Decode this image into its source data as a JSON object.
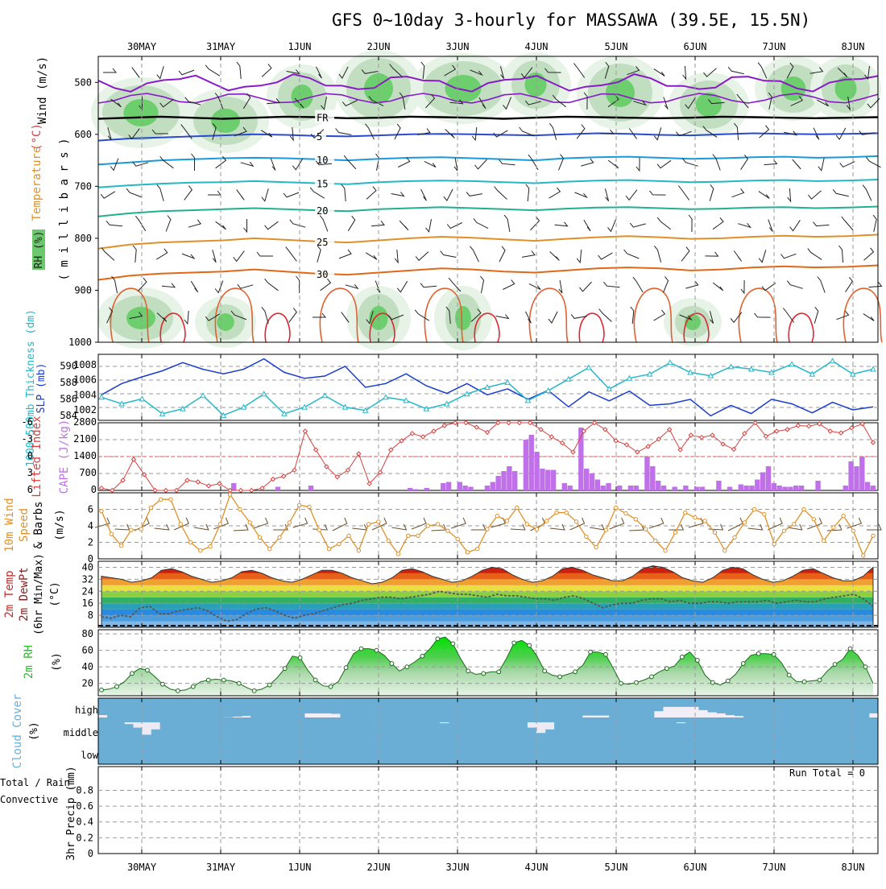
{
  "title": "GFS 0~10day 3-hourly for MASSAWA (39.5E, 15.5N)",
  "days": [
    "30MAY",
    "31MAY",
    "1JUN",
    "2JUN",
    "3JUN",
    "4JUN",
    "5JUN",
    "6JUN",
    "7JUN",
    "8JUN"
  ],
  "run_total": "Run Total = 0",
  "colors": {
    "rh_green": "#3cc83c",
    "temp_cool": "#0a8ac8",
    "temp_warm": "#e0902a",
    "slp": "#1a3ccc",
    "thickness": "#22b8c8",
    "lifted": "#d84040",
    "cape": "#c070e8",
    "wind": "#e09028",
    "cloud": "#6aaed6",
    "rh2m": "#2ebd2e"
  },
  "chart_data": [
    {
      "type": "heatmap",
      "name": "upper-air",
      "ylabels": [
        {
          "text": "Wind (m/s)",
          "color": "#000000"
        },
        {
          "text": "(°C)",
          "color": "#d04040"
        },
        {
          "text": "Temperature",
          "color": "#e09028"
        },
        {
          "text": "RH (%)",
          "color": "#2ebd2e"
        },
        {
          "text": "( m i l l i b a r s )",
          "color": "#000000"
        }
      ],
      "yticks": [
        "500",
        "600",
        "700",
        "800",
        "900",
        "1000"
      ],
      "ylim": [
        1000,
        450
      ],
      "temperature_contours": [
        {
          "label": "FR",
          "level_mb": [
            570,
            568,
            566,
            568,
            570,
            568,
            566,
            567,
            569,
            568,
            566,
            567,
            568,
            570,
            568,
            566,
            567,
            568,
            569,
            568,
            566,
            567,
            568,
            569,
            568,
            567
          ],
          "color": "#000000"
        },
        {
          "label": "5",
          "level_mb": [
            612,
            608,
            606,
            604,
            602,
            600,
            601,
            603,
            604,
            602,
            600,
            599,
            600,
            601,
            602,
            600,
            598,
            599,
            601,
            602,
            600,
            598,
            599,
            600,
            599,
            598
          ],
          "color": "#2a4ad0"
        },
        {
          "label": "10",
          "level_mb": [
            658,
            654,
            650,
            648,
            646,
            645,
            646,
            648,
            650,
            647,
            645,
            644,
            646,
            648,
            650,
            646,
            644,
            643,
            645,
            647,
            646,
            644,
            643,
            645,
            644,
            642
          ],
          "color": "#1a9ad8"
        },
        {
          "label": "15",
          "level_mb": [
            702,
            698,
            695,
            693,
            692,
            690,
            692,
            694,
            696,
            692,
            690,
            689,
            690,
            692,
            694,
            691,
            689,
            688,
            690,
            692,
            691,
            689,
            688,
            690,
            689,
            687
          ],
          "color": "#22b8c8"
        },
        {
          "label": "20",
          "level_mb": [
            758,
            752,
            748,
            746,
            744,
            742,
            744,
            746,
            748,
            744,
            742,
            740,
            742,
            744,
            746,
            743,
            741,
            740,
            742,
            744,
            743,
            741,
            740,
            742,
            741,
            739
          ],
          "color": "#20b090"
        },
        {
          "label": "25",
          "level_mb": [
            820,
            812,
            808,
            806,
            804,
            800,
            803,
            806,
            808,
            804,
            800,
            797,
            799,
            802,
            805,
            801,
            798,
            796,
            798,
            801,
            800,
            797,
            795,
            797,
            796,
            793
          ],
          "color": "#e09028"
        },
        {
          "label": "30",
          "level_mb": [
            880,
            872,
            868,
            866,
            864,
            860,
            864,
            868,
            870,
            866,
            862,
            858,
            860,
            864,
            866,
            862,
            858,
            856,
            858,
            862,
            860,
            856,
            854,
            856,
            855,
            852
          ],
          "color": "#e06818"
        }
      ],
      "contour_labels": [
        "5",
        "10",
        "15",
        "20",
        "25",
        "30",
        "FR",
        "10",
        "30",
        "5",
        "10",
        "15",
        "20",
        "25",
        "30",
        "FR",
        "30",
        "5"
      ]
    },
    {
      "type": "line",
      "name": "slp-thickness",
      "ylabel_left": "1000-500mb Thickness (dm)",
      "ylabel_right": "SLP (mb)",
      "yticks_thickness": [
        "584",
        "586",
        "588",
        "590"
      ],
      "yticks_slp": [
        "1002",
        "1004",
        "1006",
        "1008"
      ],
      "series": [
        {
          "name": "SLP (mb)",
          "values": [
            1004.0,
            1005.5,
            1006.4,
            1007.2,
            1008.3,
            1007.4,
            1006.8,
            1007.4,
            1008.8,
            1007.0,
            1006.2,
            1006.5,
            1007.8,
            1005.0,
            1005.5,
            1006.8,
            1005.2,
            1004.2,
            1005.5,
            1004.0,
            1004.8,
            1003.4,
            1004.6,
            1002.4,
            1004.4,
            1003.2,
            1004.5,
            1002.6,
            1002.8,
            1003.4,
            1001.2,
            1002.6,
            1001.5,
            1003.4,
            1002.8,
            1001.6,
            1003.0,
            1002.0,
            1002.4
          ]
        },
        {
          "name": "Thickness (dm)",
          "values": [
            586.2,
            585.4,
            586.0,
            584.2,
            584.8,
            586.4,
            584.0,
            585.0,
            586.6,
            584.2,
            585.0,
            586.4,
            585.0,
            584.6,
            586.2,
            585.8,
            584.8,
            585.4,
            586.6,
            587.4,
            588.0,
            585.8,
            587.0,
            588.4,
            589.8,
            587.2,
            588.5,
            589.0,
            590.4,
            589.2,
            588.8,
            589.9,
            589.6,
            589.2,
            590.2,
            589.0,
            590.6,
            589.0,
            589.6
          ]
        }
      ]
    },
    {
      "type": "bar",
      "name": "cape-lifted-index",
      "ylabel_left": "Lifted Index",
      "ylabel_right": "CAPE (J/kg)",
      "yticks_li": [
        "6",
        "3",
        "0",
        "-3",
        "-6"
      ],
      "yticks_cape": [
        "0",
        "700",
        "1400",
        "2100",
        "2800"
      ],
      "cape_values": [
        0,
        0,
        0,
        0,
        0,
        0,
        0,
        0,
        0,
        0,
        0,
        0,
        0,
        0,
        0,
        0,
        0,
        0,
        0,
        0,
        0,
        0,
        0,
        0,
        300,
        0,
        0,
        0,
        0,
        0,
        0,
        0,
        150,
        0,
        0,
        0,
        0,
        0,
        200,
        0,
        0,
        0,
        0,
        0,
        0,
        0,
        0,
        0,
        0,
        0,
        0,
        0,
        0,
        0,
        0,
        0,
        100,
        50,
        0,
        100,
        0,
        0,
        300,
        350,
        0,
        350,
        200,
        150,
        0,
        0,
        200,
        350,
        600,
        800,
        1000,
        800,
        0,
        2100,
        2300,
        1600,
        900,
        850,
        850,
        0,
        300,
        200,
        0,
        2600,
        900,
        700,
        450,
        200,
        300,
        0,
        200,
        0,
        200,
        200,
        0,
        1400,
        1000,
        400,
        200,
        0,
        150,
        0,
        200,
        0,
        150,
        150,
        0,
        0,
        400,
        0,
        150,
        0,
        250,
        200,
        200,
        450,
        750,
        1000,
        300,
        200,
        150,
        150,
        200,
        200,
        0,
        0,
        400,
        0,
        0,
        0,
        0,
        200,
        1200,
        1000,
        1400,
        350,
        200
      ],
      "lifted_index": [
        5.6,
        6,
        4.2,
        0.5,
        3.2,
        6,
        6,
        6,
        4.2,
        4.5,
        5.2,
        4.8,
        6,
        6,
        6,
        5.6,
        4,
        3.5,
        2.4,
        -4.5,
        -1.2,
        1.8,
        3.6,
        2.4,
        -0.5,
        4.8,
        2.8,
        -1.2,
        -2.8,
        -4.1,
        -3.5,
        -4.5,
        -5.5,
        -6,
        -6,
        -5.2,
        -4.3,
        -6,
        -6,
        -6,
        -6,
        -4.8,
        -3.5,
        -2.4,
        -0.8,
        -4.5,
        -6,
        -4.8,
        -2.8,
        -2.1,
        -0.8,
        -1.8,
        -3.1,
        -4.8,
        -1.2,
        -3.8,
        -3.4,
        -3.8,
        -2.2,
        -1.3,
        -4.1,
        -6,
        -3.6,
        -4.5,
        -4.8,
        -5.5,
        -5.4,
        -5.8,
        -4.5,
        -4.2,
        -5.1,
        -5.8,
        -2.5
      ]
    },
    {
      "type": "line",
      "name": "10m-wind",
      "ylabel": "10m Wind Speed & Barbs (m/s)",
      "yticks": [
        "0",
        "2",
        "4",
        "6"
      ],
      "ylim": [
        0,
        8
      ],
      "values": [
        5.8,
        3.0,
        1.6,
        3.5,
        3.6,
        6.2,
        7.2,
        7.2,
        4.2,
        2.0,
        1.0,
        1.5,
        4.2,
        7.8,
        6.0,
        4.4,
        2.6,
        1.2,
        2.6,
        4.4,
        6.5,
        6.3,
        3.5,
        1.2,
        1.8,
        2.8,
        1.0,
        4.2,
        4.5,
        2.2,
        0.6,
        2.8,
        2.8,
        4.0,
        4.2,
        3.4,
        2.4,
        0.8,
        1.2,
        3.6,
        5.2,
        4.6,
        6.2,
        4.2,
        3.6,
        4.6,
        5.6,
        5.6,
        4.5,
        2.7,
        1.4,
        3.5,
        6.2,
        5.5,
        4.8,
        3.6,
        2.2,
        1.0,
        3.2,
        5.6,
        5.0,
        4.6,
        3.2,
        1.0,
        2.6,
        4.4,
        6.0,
        5.4,
        1.8,
        3.4,
        4.2,
        6.0,
        4.8,
        2.2,
        3.8,
        5.2,
        3.4,
        0.4,
        2.8
      ]
    },
    {
      "type": "area",
      "name": "2m-temp",
      "ylabel": "2m Temp 2m DewPt (6hr Min/Max) (°C)",
      "yticks": [
        "8",
        "16",
        "24",
        "32",
        "40"
      ],
      "ylim": [
        0,
        44
      ],
      "temperature": [
        34,
        33,
        32,
        30,
        31,
        33,
        38,
        39,
        37,
        34,
        32,
        30,
        31,
        33,
        37,
        38,
        36,
        33,
        31,
        30,
        32,
        35,
        38,
        38,
        36,
        33,
        31,
        29,
        30,
        33,
        38,
        39,
        37,
        34,
        32,
        30,
        31,
        34,
        38,
        40,
        39,
        35,
        32,
        30,
        31,
        34,
        39,
        40,
        38,
        35,
        33,
        31,
        31,
        34,
        39,
        41,
        40,
        37,
        33,
        31,
        30,
        33,
        38,
        40,
        39,
        35,
        32,
        30,
        31,
        34,
        38,
        39,
        36,
        33,
        31,
        31,
        34,
        40
      ],
      "dewpoint": [
        7,
        6,
        8,
        7,
        13,
        14,
        9,
        9,
        11,
        12,
        13,
        11,
        7,
        4,
        5,
        9,
        12,
        13,
        11,
        8,
        6,
        8,
        9,
        11,
        13,
        15,
        16,
        18,
        19,
        20,
        20,
        19,
        20,
        21,
        22,
        24,
        23,
        22,
        22,
        21,
        20,
        22,
        21,
        21,
        20,
        19,
        19,
        18,
        20,
        21,
        19,
        16,
        13,
        15,
        16,
        16,
        18,
        19,
        19,
        17,
        18,
        16,
        16,
        17,
        17,
        16,
        17,
        17,
        17,
        18,
        16,
        17,
        18,
        17,
        17,
        19,
        20,
        21,
        22,
        19,
        14
      ]
    },
    {
      "type": "area",
      "name": "2m-rh",
      "ylabel": "2m RH (%)",
      "yticks": [
        "20",
        "40",
        "60",
        "80"
      ],
      "ylim": [
        5,
        85
      ],
      "values": [
        12,
        13,
        16,
        22,
        32,
        38,
        36,
        28,
        19,
        13,
        11,
        12,
        16,
        22,
        24,
        25,
        24,
        23,
        20,
        15,
        11,
        13,
        18,
        27,
        38,
        53,
        51,
        36,
        24,
        17,
        16,
        22,
        39,
        56,
        62,
        62,
        60,
        54,
        44,
        35,
        40,
        46,
        53,
        62,
        74,
        76,
        68,
        50,
        35,
        31,
        32,
        34,
        34,
        50,
        69,
        72,
        66,
        53,
        35,
        30,
        28,
        31,
        34,
        42,
        58,
        58,
        55,
        38,
        20,
        19,
        21,
        24,
        28,
        34,
        38,
        41,
        52,
        58,
        48,
        30,
        21,
        18,
        23,
        31,
        44,
        54,
        56,
        56,
        55,
        45,
        30,
        22,
        22,
        23,
        24,
        35,
        43,
        49,
        62,
        54,
        40,
        20
      ]
    },
    {
      "type": "bar",
      "name": "cloud-cover",
      "ylabel": "Cloud Cover (%)",
      "levels": [
        "high",
        "middle",
        "low"
      ],
      "high": [
        78,
        95,
        95,
        90,
        100,
        100,
        100,
        100,
        100,
        100,
        100,
        100,
        95,
        90,
        88,
        85,
        82,
        100,
        100,
        100,
        100,
        100,
        100,
        70,
        70,
        70,
        72,
        100,
        100,
        100,
        100,
        100,
        100,
        100,
        100,
        100,
        100,
        100,
        100,
        100,
        100,
        100,
        100,
        100,
        100,
        100,
        100,
        100,
        100,
        100,
        100,
        100,
        100,
        100,
        80,
        80,
        80,
        100,
        100,
        100,
        100,
        100,
        60,
        40,
        40,
        40,
        40,
        55,
        65,
        70,
        78,
        82,
        100,
        100,
        100,
        100,
        100,
        100,
        100,
        100,
        100,
        100,
        100,
        100,
        100,
        100,
        70
      ],
      "middle": [
        0,
        0,
        0,
        10,
        30,
        70,
        40,
        0,
        0,
        0,
        0,
        0,
        0,
        0,
        0,
        0,
        0,
        0,
        0,
        0,
        0,
        0,
        0,
        0,
        0,
        0,
        0,
        0,
        0,
        0,
        0,
        0,
        0,
        0,
        0,
        0,
        0,
        0,
        0,
        5,
        0,
        0,
        0,
        0,
        0,
        0,
        0,
        0,
        0,
        30,
        60,
        40,
        0,
        0,
        0,
        0,
        0,
        0,
        0,
        0,
        0,
        0,
        0,
        0,
        0,
        0,
        5,
        0,
        0,
        0,
        0,
        0,
        0,
        0,
        0,
        0,
        0,
        0,
        0,
        0,
        0,
        0,
        0,
        0,
        0,
        0,
        0,
        0,
        0
      ]
    },
    {
      "type": "line",
      "name": "precip",
      "ylabel": "3hr Precip (mm)",
      "ylabel_sub_green": "Total / Rain",
      "ylabel_sub_red": "Convective",
      "yticks": [
        "0",
        "0.2",
        "0.4",
        "0.6",
        "0.8"
      ],
      "ylim": [
        0,
        1
      ],
      "values": []
    }
  ]
}
